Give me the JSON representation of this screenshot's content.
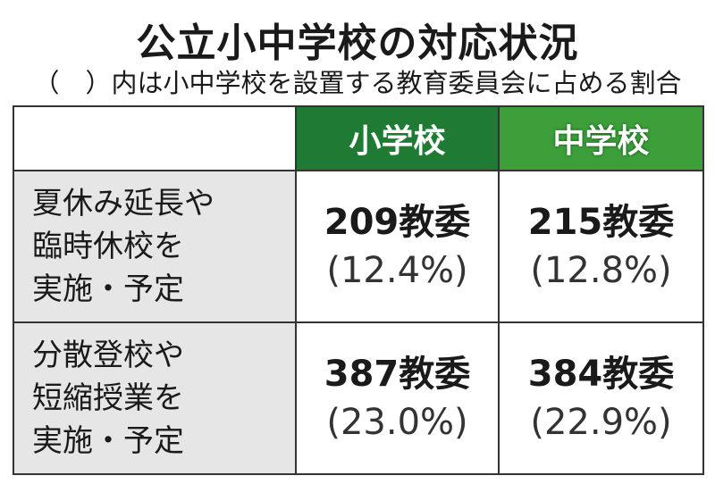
{
  "header": {
    "title": "公立小中学校の対応状況",
    "subtitle": "（　）内は小中学校を設置する教育委員会に占める割合"
  },
  "table": {
    "columns": [
      "小学校",
      "中学校"
    ],
    "rows": [
      {
        "label": [
          "夏休み延長や",
          "臨時休校を",
          "実施・予定"
        ],
        "cells": [
          [
            "209教委",
            "(12.4%)"
          ],
          [
            "215教委",
            "(12.8%)"
          ]
        ]
      },
      {
        "label": [
          "分散登校や",
          "短縮授業を",
          "実施・予定"
        ],
        "cells": [
          [
            "387教委",
            "(23.0%)"
          ],
          [
            "384教委",
            "(22.9%)"
          ]
        ]
      }
    ]
  }
}
